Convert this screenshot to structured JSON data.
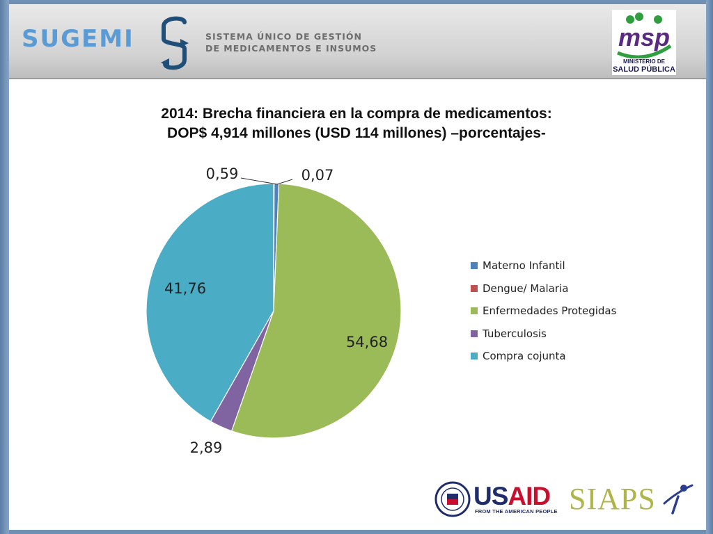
{
  "header": {
    "brand_word": "SUGEMI",
    "brand_line1": "SISTEMA ÚNICO DE GESTIÓN",
    "brand_line2": "DE MEDICAMENTOS E INSUMOS",
    "ministry_line1": "MINISTERIO DE",
    "ministry_line2": "SALUD PÚBLICA",
    "ministry_logo_text": "msp"
  },
  "footer": {
    "usaid_word_a": "US",
    "usaid_word_b": "AID",
    "usaid_tagline": "FROM THE AMERICAN PEOPLE",
    "siaps_word": "SIAPS"
  },
  "chart_data": {
    "type": "pie",
    "title_line1": "2014: Brecha financiera en la compra de medicamentos:",
    "title_line2": "DOP$ 4,914 millones (USD 114 millones) –porcentajes-",
    "legend_position": "right",
    "slice_order": [
      "Dengue/ Malaria",
      "Materno Infantil",
      "Enfermedades Protegidas",
      "Tuberculosis",
      "Compra cojunta"
    ],
    "slices": [
      {
        "name": "Materno Infantil",
        "value": 0.59,
        "label": "0,59",
        "color": "#4f81bd"
      },
      {
        "name": "Dengue/ Malaria",
        "value": 0.07,
        "label": "0,07",
        "color": "#c0504d"
      },
      {
        "name": "Enfermedades Protegidas",
        "value": 54.68,
        "label": "54,68",
        "color": "#9bbb59"
      },
      {
        "name": "Tuberculosis",
        "value": 2.89,
        "label": "2,89",
        "color": "#8064a2"
      },
      {
        "name": "Compra cojunta",
        "value": 41.76,
        "label": "41,76",
        "color": "#4bacc6"
      }
    ]
  }
}
